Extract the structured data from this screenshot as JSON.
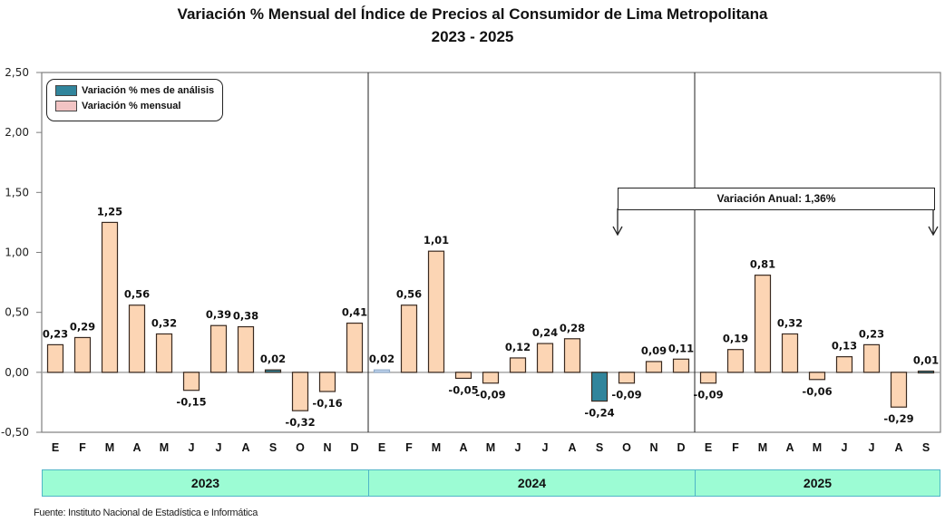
{
  "chart_data": {
    "type": "bar",
    "title": "Variación % Mensual del Índice de Precios al Consumidor de Lima Metropolitana",
    "subtitle": "2023 - 2025",
    "xlabel": "",
    "ylabel": "",
    "ylim": [
      -0.5,
      2.5
    ],
    "yticks": [
      2.5,
      2.0,
      1.5,
      1.0,
      0.5,
      0.0,
      -0.5
    ],
    "ytick_labels": [
      "2,50",
      "2,00",
      "1,50",
      "1,00",
      "0,50",
      "0,00",
      "-0,50"
    ],
    "grid": false,
    "legend_position": "top-left",
    "legend": [
      {
        "label": "Variación % mes de análisis",
        "color": "#31859c"
      },
      {
        "label": "Variación % mensual",
        "color": "#f2c4c4"
      }
    ],
    "categories": [
      "E",
      "F",
      "M",
      "A",
      "M",
      "J",
      "J",
      "A",
      "S",
      "O",
      "N",
      "D",
      "E",
      "F",
      "M",
      "A",
      "M",
      "J",
      "J",
      "A",
      "S",
      "O",
      "N",
      "D",
      "E",
      "F",
      "M",
      "A",
      "M",
      "J",
      "J",
      "A",
      "S"
    ],
    "years": [
      {
        "label": "2023",
        "months": 12
      },
      {
        "label": "2024",
        "months": 12
      },
      {
        "label": "2025",
        "months": 9
      }
    ],
    "values": [
      0.23,
      0.29,
      1.25,
      0.56,
      0.32,
      -0.15,
      0.39,
      0.38,
      0.02,
      -0.32,
      -0.16,
      0.41,
      0.02,
      0.56,
      1.01,
      -0.05,
      -0.09,
      0.12,
      0.24,
      0.28,
      -0.24,
      -0.09,
      0.09,
      0.11,
      -0.09,
      0.19,
      0.81,
      0.32,
      -0.06,
      0.13,
      0.23,
      -0.29,
      0.01
    ],
    "value_labels": [
      "0,23",
      "0,29",
      "1,25",
      "0,56",
      "0,32",
      "-0,15",
      "0,39",
      "0,38",
      "0,02",
      "-0,32",
      "-0,16",
      "0,41",
      "0,02",
      "0,56",
      "1,01",
      "-0,05",
      "-0,09",
      "0,12",
      "0,24",
      "0,28",
      "-0,24",
      "-0,09",
      "0,09",
      "0,11",
      "-0,09",
      "0,19",
      "0,81",
      "0,32",
      "-0,06",
      "0,13",
      "0,23",
      "-0,29",
      "0,01"
    ],
    "bar_kind": [
      "m",
      "m",
      "m",
      "m",
      "m",
      "m",
      "m",
      "m",
      "a",
      "m",
      "m",
      "m",
      "p",
      "m",
      "m",
      "m",
      "m",
      "m",
      "m",
      "m",
      "a",
      "m",
      "m",
      "m",
      "m",
      "m",
      "m",
      "m",
      "m",
      "m",
      "m",
      "m",
      "a"
    ],
    "colors": {
      "monthly": "#fcd5b4",
      "analysis": "#31859c",
      "prior": "#c5d9f1",
      "bar_border": "#3a2a20"
    },
    "annotation": {
      "text": "Variación Anual: 1,36%",
      "from_index": 21,
      "to_index": 32
    }
  },
  "source": "Fuente: Instituto  Nacional de Estadística  e Informática"
}
